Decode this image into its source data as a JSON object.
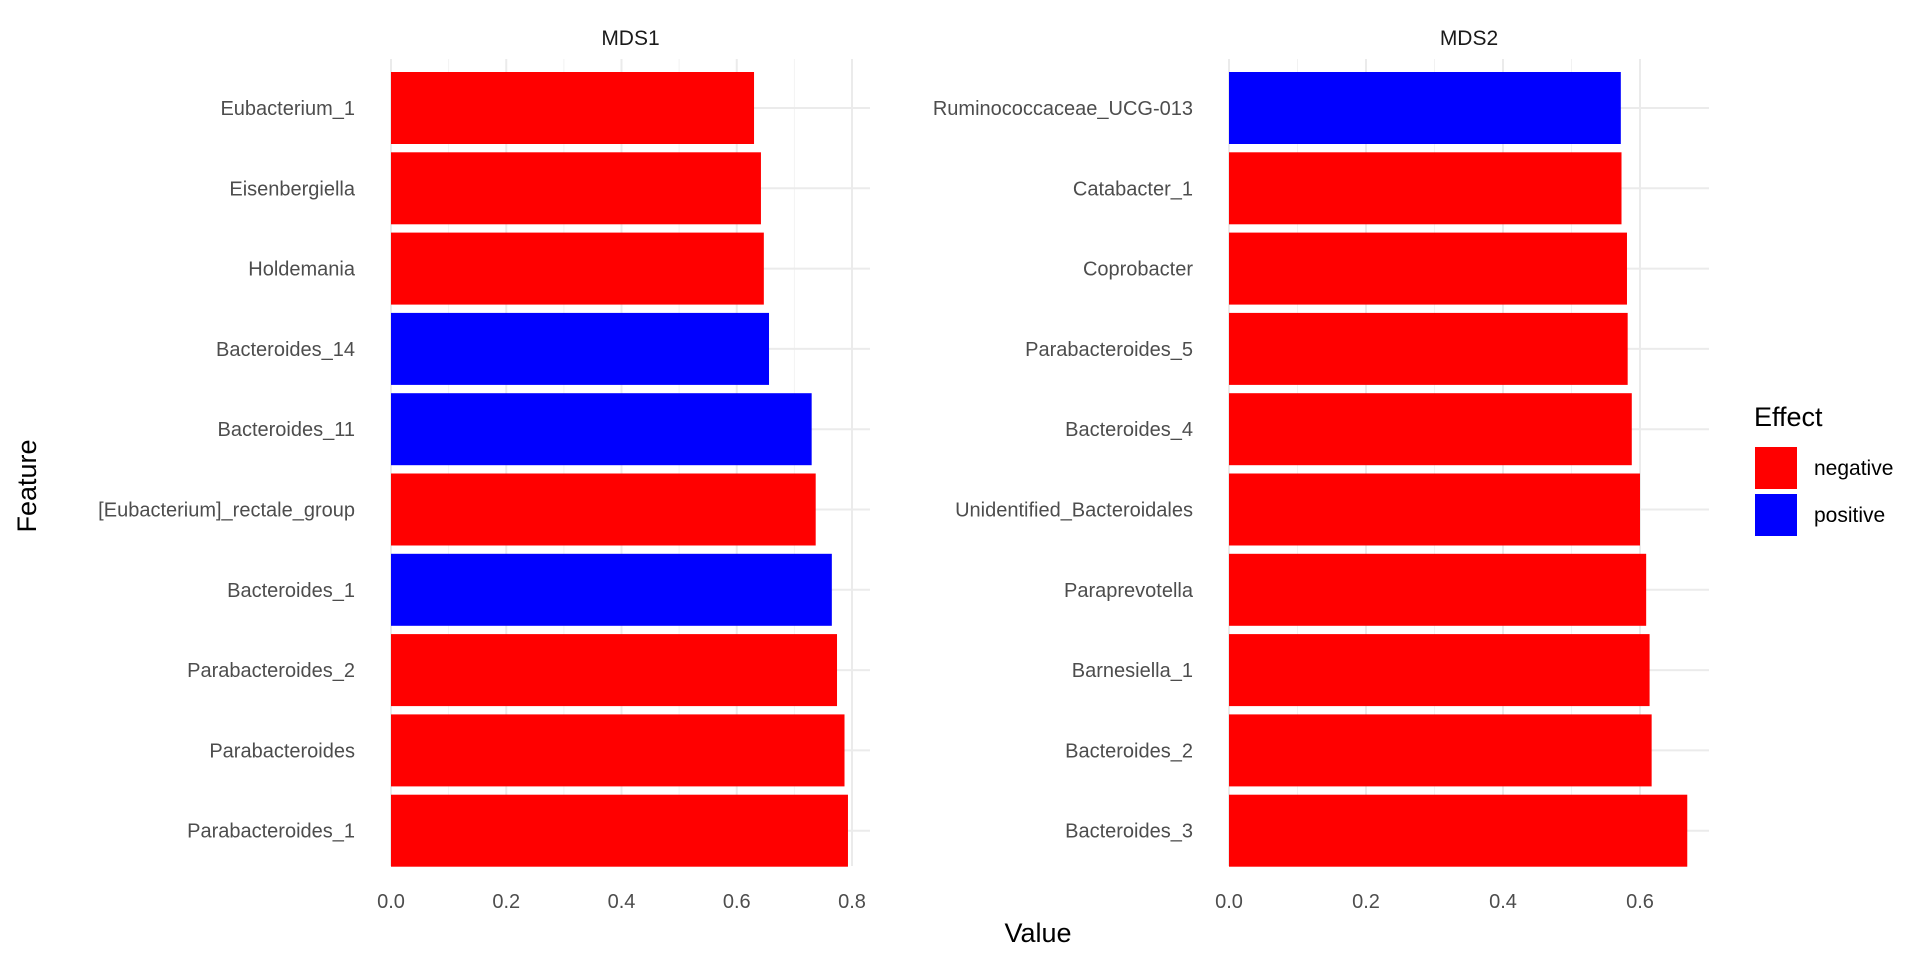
{
  "chart_data": {
    "type": "bar",
    "orientation": "horizontal",
    "xlabel": "Value",
    "ylabel": "Feature",
    "grid": true,
    "legend": {
      "title": "Effect",
      "position": "right",
      "items": [
        {
          "label": "negative",
          "color": "#ff0000"
        },
        {
          "label": "positive",
          "color": "#0000ff"
        }
      ]
    },
    "facets": [
      {
        "title": "MDS1",
        "xlim": [
          0,
          0.8
        ],
        "ticks": [
          "0.0",
          "0.2",
          "0.4",
          "0.6",
          "0.8"
        ],
        "categories": [
          "Eubacterium_1",
          "Eisenbergiella",
          "Holdemania",
          "Bacteroides_14",
          "Bacteroides_11",
          "[Eubacterium]_rectale_group",
          "Bacteroides_1",
          "Parabacteroides_2",
          "Parabacteroides",
          "Parabacteroides_1"
        ],
        "values": [
          0.63,
          0.642,
          0.647,
          0.656,
          0.73,
          0.737,
          0.765,
          0.774,
          0.787,
          0.793
        ],
        "effects": [
          "negative",
          "negative",
          "negative",
          "positive",
          "positive",
          "negative",
          "positive",
          "negative",
          "negative",
          "negative"
        ]
      },
      {
        "title": "MDS2",
        "xlim": [
          0,
          0.6
        ],
        "ticks": [
          "0.0",
          "0.2",
          "0.4",
          "0.6"
        ],
        "categories": [
          "Ruminococcaceae_UCG-013",
          "Catabacter_1",
          "Coprobacter",
          "Parabacteroides_5",
          "Bacteroides_4",
          "Unidentified_Bacteroidales",
          "Paraprevotella",
          "Barnesiella_1",
          "Bacteroides_2",
          "Bacteroides_3"
        ],
        "values": [
          0.572,
          0.573,
          0.581,
          0.582,
          0.588,
          0.6,
          0.609,
          0.614,
          0.617,
          0.669
        ],
        "effects": [
          "positive",
          "negative",
          "negative",
          "negative",
          "negative",
          "negative",
          "negative",
          "negative",
          "negative",
          "negative"
        ]
      }
    ]
  }
}
